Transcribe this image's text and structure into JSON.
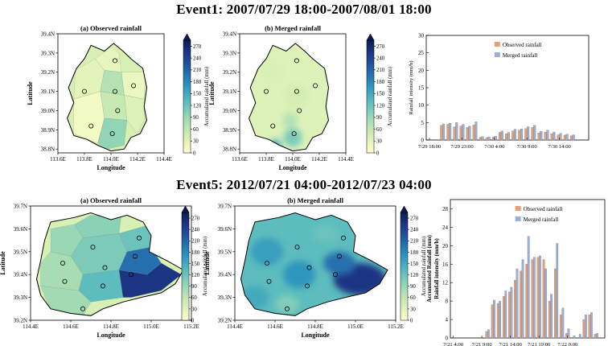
{
  "event1": {
    "title": "Event1:  2007/07/29 18:00-2007/08/01 18:00",
    "map_a": {
      "title": "(a) Observed rainfall",
      "xlabel": "Longitude",
      "ylabel": "Latitude",
      "xticks": [
        "113.6E",
        "113.8E",
        "114.0E",
        "114.2E",
        "114.4E"
      ],
      "yticks": [
        "38.8N",
        "38.9N",
        "39.0N",
        "39.1N",
        "39.2N",
        "39.3N",
        "39.4N"
      ],
      "xlim": [
        113.6,
        114.4
      ],
      "ylim": [
        38.78,
        39.4
      ],
      "cb_label": "Accumulated rainfall (mm)"
    },
    "map_b": {
      "title": "(b) Merged rainfall",
      "xlabel": "Longitude",
      "ylabel": "Latitude",
      "xticks": [
        "113.6E",
        "113.8E",
        "114.0E",
        "114.2E",
        "114.4E"
      ],
      "yticks": [
        "38.8N",
        "38.9N",
        "39.0N",
        "39.1N",
        "39.2N",
        "39.3N",
        "39.4N"
      ],
      "xlim": [
        113.6,
        114.4
      ],
      "ylim": [
        38.78,
        39.4
      ],
      "cb_label": "Accumulated rainfall (mm)"
    },
    "colorbar_ticks": [
      "0",
      "30",
      "60",
      "90",
      "120",
      "150",
      "180",
      "210",
      "240",
      "270"
    ],
    "stations": [
      [
        114.03,
        39.26
      ],
      [
        113.8,
        39.1
      ],
      [
        114.03,
        39.1
      ],
      [
        114.17,
        39.13
      ],
      [
        114.05,
        39.0
      ],
      [
        113.85,
        38.92
      ],
      [
        114.01,
        38.88
      ]
    ],
    "cells_a": [
      {
        "pts": [
          [
            113.72,
            39.06
          ],
          [
            113.92,
            39.1
          ],
          [
            113.95,
            39.21
          ],
          [
            113.88,
            39.27
          ],
          [
            113.73,
            39.21
          ]
        ],
        "v": 30
      },
      {
        "pts": [
          [
            113.95,
            39.21
          ],
          [
            114.08,
            39.2
          ],
          [
            114.06,
            39.3
          ],
          [
            114.0,
            39.33
          ],
          [
            113.88,
            39.27
          ]
        ],
        "v": 25
      },
      {
        "pts": [
          [
            113.92,
            39.1
          ],
          [
            114.1,
            39.08
          ],
          [
            114.08,
            39.2
          ],
          [
            113.95,
            39.21
          ]
        ],
        "v": 70
      },
      {
        "pts": [
          [
            114.1,
            39.08
          ],
          [
            114.25,
            39.06
          ],
          [
            114.26,
            39.2
          ],
          [
            114.08,
            39.2
          ]
        ],
        "v": 22
      },
      {
        "pts": [
          [
            113.92,
            39.1
          ],
          [
            113.95,
            38.96
          ],
          [
            114.12,
            38.95
          ],
          [
            114.1,
            39.08
          ]
        ],
        "v": 55
      },
      {
        "pts": [
          [
            114.12,
            38.95
          ],
          [
            114.2,
            38.88
          ],
          [
            114.25,
            38.95
          ],
          [
            114.25,
            39.06
          ],
          [
            114.1,
            39.08
          ]
        ],
        "v": 35
      },
      {
        "pts": [
          [
            113.72,
            39.06
          ],
          [
            113.92,
            39.1
          ],
          [
            113.95,
            38.96
          ],
          [
            113.9,
            38.83
          ],
          [
            113.72,
            38.88
          ]
        ],
        "v": 12
      },
      {
        "pts": [
          [
            113.95,
            38.96
          ],
          [
            114.12,
            38.95
          ],
          [
            114.1,
            38.82
          ],
          [
            113.97,
            38.8
          ],
          [
            113.9,
            38.83
          ]
        ],
        "v": 95
      }
    ],
    "blobs_b": [
      {
        "cx": 113.87,
        "cy": 38.82,
        "rx": 0.04,
        "ry": 0.03,
        "v": 150
      },
      {
        "cx": 114.0,
        "cy": 38.86,
        "rx": 0.07,
        "ry": 0.05,
        "v": 110
      },
      {
        "cx": 113.98,
        "cy": 38.95,
        "rx": 0.06,
        "ry": 0.04,
        "v": 70
      },
      {
        "cx": 113.85,
        "cy": 39.2,
        "rx": 0.1,
        "ry": 0.07,
        "v": 40
      },
      {
        "cx": 114.03,
        "cy": 39.08,
        "rx": 0.1,
        "ry": 0.06,
        "v": 45
      }
    ],
    "bar": {
      "ylabel": "Rainfall intensity (mm/h)",
      "ylim": [
        0,
        30
      ],
      "yticks": [
        "0",
        "5",
        "10",
        "15",
        "20",
        "25",
        "30"
      ],
      "xticks": [
        "7/29 18:00",
        "7/29 23:00",
        "7/30 4:00",
        "7/30 9:00",
        "7/30 14:00"
      ],
      "xtick_idx": [
        0,
        5,
        10,
        15,
        20
      ],
      "legend": [
        "Observed rainfall",
        "Merged rainfall"
      ],
      "series": [
        {
          "name": "Observed rainfall",
          "values": [
            0,
            0,
            4.2,
            4.5,
            3.8,
            4.0,
            3.6,
            4.3,
            0.8,
            0.7,
            0.9,
            2.2,
            1.8,
            2.6,
            2.8,
            3.3,
            3.6,
            2.0,
            2.3,
            1.8,
            1.5,
            1.4,
            1.2,
            0
          ]
        },
        {
          "name": "Merged rainfall",
          "values": [
            0,
            0,
            4.6,
            4.8,
            5.0,
            4.5,
            4.0,
            5.2,
            1.0,
            0.9,
            1.1,
            2.6,
            2.2,
            3.1,
            3.2,
            3.8,
            4.2,
            2.5,
            2.8,
            2.3,
            1.9,
            1.7,
            1.5,
            0
          ]
        }
      ]
    }
  },
  "event5": {
    "title": "Event5:  2012/07/21 04:00-2012/07/23 04:00",
    "map_a": {
      "title": "(a) Observed rainfall",
      "xlabel": "Longitude",
      "ylabel": "Latitude",
      "xticks": [
        "114.4E",
        "114.6E",
        "114.8E",
        "115.0E",
        "115.2E"
      ],
      "yticks": [
        "39.2N",
        "39.3N",
        "39.4N",
        "39.5N",
        "39.6N",
        "39.7N"
      ],
      "xlim": [
        114.4,
        115.2
      ],
      "ylim": [
        39.2,
        39.7
      ],
      "cb_label": "Accumulated rainfall (mm)"
    },
    "map_b": {
      "title": "(b) Merged rainfall",
      "xlabel": "Longitude",
      "ylabel": "Latitude",
      "xticks": [
        "114.4E",
        "114.6E",
        "114.8E",
        "115.0E",
        "115.2E"
      ],
      "yticks": [
        "39.2N",
        "39.3N",
        "39.4N",
        "39.5N",
        "39.6N",
        "39.7N"
      ],
      "xlim": [
        114.4,
        115.2
      ],
      "ylim": [
        39.2,
        39.7
      ],
      "cb_label": "Accumulated rainfall (mm)"
    },
    "colorbar_ticks": [
      "0",
      "30",
      "60",
      "90",
      "120",
      "150",
      "180",
      "210",
      "240",
      "270"
    ],
    "stations": [
      [
        114.71,
        39.52
      ],
      [
        114.94,
        39.56
      ],
      [
        114.56,
        39.45
      ],
      [
        114.77,
        39.43
      ],
      [
        114.92,
        39.48
      ],
      [
        114.57,
        39.37
      ],
      [
        114.76,
        39.35
      ],
      [
        114.9,
        39.4
      ],
      [
        114.66,
        39.25
      ]
    ],
    "cells_a": [
      {
        "pts": [
          [
            114.5,
            39.5
          ],
          [
            114.6,
            39.48
          ],
          [
            114.66,
            39.56
          ],
          [
            114.62,
            39.62
          ],
          [
            114.5,
            39.6
          ]
        ],
        "v": 90
      },
      {
        "pts": [
          [
            114.62,
            39.62
          ],
          [
            114.66,
            39.56
          ],
          [
            114.84,
            39.58
          ],
          [
            114.85,
            39.65
          ],
          [
            114.7,
            39.66
          ]
        ],
        "v": 100
      },
      {
        "pts": [
          [
            114.84,
            39.58
          ],
          [
            115.0,
            39.62
          ],
          [
            115.0,
            39.52
          ],
          [
            114.88,
            39.5
          ]
        ],
        "v": 120
      },
      {
        "pts": [
          [
            114.6,
            39.48
          ],
          [
            114.66,
            39.56
          ],
          [
            114.84,
            39.58
          ],
          [
            114.88,
            39.5
          ],
          [
            114.84,
            39.42
          ],
          [
            114.66,
            39.4
          ]
        ],
        "v": 110
      },
      {
        "pts": [
          [
            114.5,
            39.5
          ],
          [
            114.6,
            39.48
          ],
          [
            114.66,
            39.4
          ],
          [
            114.64,
            39.33
          ],
          [
            114.45,
            39.35
          ],
          [
            114.45,
            39.45
          ]
        ],
        "v": 80
      },
      {
        "pts": [
          [
            114.88,
            39.5
          ],
          [
            115.0,
            39.52
          ],
          [
            115.05,
            39.45
          ],
          [
            114.98,
            39.4
          ],
          [
            114.84,
            39.42
          ]
        ],
        "v": 200
      },
      {
        "pts": [
          [
            114.66,
            39.4
          ],
          [
            114.84,
            39.42
          ],
          [
            114.86,
            39.3
          ],
          [
            114.7,
            39.28
          ],
          [
            114.64,
            39.33
          ]
        ],
        "v": 130
      },
      {
        "pts": [
          [
            114.84,
            39.42
          ],
          [
            114.98,
            39.4
          ],
          [
            115.05,
            39.45
          ],
          [
            115.15,
            39.4
          ],
          [
            115.05,
            39.33
          ],
          [
            114.9,
            39.3
          ],
          [
            114.86,
            39.3
          ]
        ],
        "v": 255
      },
      {
        "pts": [
          [
            114.45,
            39.35
          ],
          [
            114.64,
            39.33
          ],
          [
            114.7,
            39.28
          ],
          [
            114.66,
            39.22
          ],
          [
            114.5,
            39.24
          ]
        ],
        "v": 85
      }
    ],
    "blobs_b": [
      {
        "cx": 115.02,
        "cy": 39.38,
        "rx": 0.13,
        "ry": 0.07,
        "v": 255
      },
      {
        "cx": 114.92,
        "cy": 39.45,
        "rx": 0.08,
        "ry": 0.05,
        "v": 200
      },
      {
        "cx": 114.56,
        "cy": 39.5,
        "rx": 0.08,
        "ry": 0.06,
        "v": 160
      },
      {
        "cx": 114.72,
        "cy": 39.4,
        "rx": 0.08,
        "ry": 0.06,
        "v": 170
      },
      {
        "cx": 114.5,
        "cy": 39.3,
        "rx": 0.07,
        "ry": 0.05,
        "v": 150
      },
      {
        "cx": 114.85,
        "cy": 39.58,
        "rx": 0.07,
        "ry": 0.04,
        "v": 120
      },
      {
        "cx": 114.66,
        "cy": 39.27,
        "rx": 0.06,
        "ry": 0.04,
        "v": 105
      }
    ],
    "bar": {
      "ylabel": "Accumulated Rainfall (mm)\nRainfall intensity (mm/h)",
      "ylabel1": "Accumulated Rainfall (mm)",
      "ylabel2": "Rainfall intensity (mm/h)",
      "ylim": [
        0,
        30
      ],
      "yticks": [
        "0",
        "4",
        "8",
        "12",
        "16",
        "20",
        "24",
        "28"
      ],
      "yvals": [
        0,
        4,
        8,
        12,
        16,
        20,
        24,
        28
      ],
      "xticks": [
        "7/21 4:00",
        "7/21 9:00",
        "7/21 14:00",
        "7/21 19:00",
        "7/22 0:00"
      ],
      "xtick_idx": [
        0,
        5,
        10,
        15,
        20
      ],
      "legend": [
        "Observed rainfall",
        "Merged rainfall"
      ],
      "series": [
        {
          "name": "Observed rainfall",
          "values": [
            0,
            0,
            0,
            0,
            0,
            0,
            1.4,
            7.2,
            7.5,
            9.0,
            10.0,
            12.5,
            14.5,
            16.0,
            17.0,
            17.5,
            17.0,
            8.0,
            15.0,
            5.0,
            1.0,
            0,
            0,
            4.0,
            5.0,
            0.8
          ]
        },
        {
          "name": "Merged rainfall",
          "values": [
            0,
            0,
            0,
            0,
            0,
            0,
            1.8,
            8.2,
            8.0,
            10.2,
            11.0,
            15.0,
            17.0,
            22.0,
            17.5,
            17.8,
            15.0,
            9.5,
            20.5,
            6.5,
            2.0,
            0.5,
            0.8,
            5.0,
            5.5,
            1.0
          ]
        }
      ]
    }
  }
}
